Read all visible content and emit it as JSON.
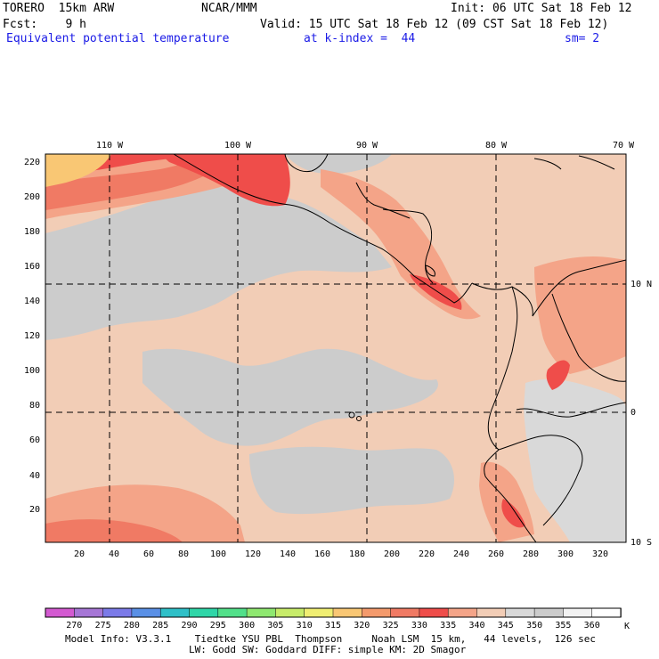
{
  "header": {
    "model": "TORERO  15km ARW",
    "org": "NCAR/MMM",
    "init": "Init: 06 UTC Sat 18 Feb 12",
    "fcst": "Fcst:    9 h",
    "valid": "Valid: 15 UTC Sat 18 Feb 12 (09 CST Sat 18 Feb 12)",
    "field": "Equivalent potential temperature",
    "level": "at k-index =  44",
    "smooth": "sm= 2"
  },
  "map": {
    "lon_labels": [
      "110 W",
      "100 W",
      "90 W",
      "80 W",
      "70 W"
    ],
    "lat_labels": [
      "10 N",
      "0",
      "10 S"
    ],
    "y_ticks": [
      "20",
      "40",
      "60",
      "80",
      "100",
      "120",
      "140",
      "160",
      "180",
      "200",
      "220"
    ],
    "x_ticks": [
      "20",
      "40",
      "60",
      "80",
      "100",
      "120",
      "140",
      "160",
      "180",
      "200",
      "220",
      "240",
      "260",
      "280",
      "300",
      "320"
    ],
    "fill_colors": {
      "dominant": "#f2cdb6",
      "gray": "#cccccc",
      "light_gray": "#d9d9d9",
      "salmon": "#f4a488",
      "orange_red": "#f07a64",
      "red": "#ef4d4a",
      "gold": "#f9c774",
      "land_border": "#000000"
    }
  },
  "colorbar": {
    "labels": [
      "270",
      "275",
      "280",
      "285",
      "290",
      "295",
      "300",
      "305",
      "310",
      "315",
      "320",
      "325",
      "330",
      "335",
      "340",
      "345",
      "350",
      "355",
      "360"
    ],
    "unit": "K",
    "colors": [
      "#d35ad1",
      "#a676d6",
      "#7b7ae8",
      "#5a90e6",
      "#2fc0c8",
      "#2fd6a8",
      "#52e08a",
      "#8fe870",
      "#c8ec6a",
      "#f0ee72",
      "#f9c774",
      "#f49a6c",
      "#f07a64",
      "#ef4d4a",
      "#f4a488",
      "#f2cdb6",
      "#d9d9d9",
      "#cccccc",
      "#f2f2f2",
      "#ffffff"
    ]
  },
  "footer": {
    "line1": "Model Info: V3.3.1    Tiedtke YSU PBL  Thompson     Noah LSM  15 km,   44 levels,  126 sec",
    "line2": "LW: Godd SW: Goddard DIFF: simple KM: 2D Smagor"
  }
}
